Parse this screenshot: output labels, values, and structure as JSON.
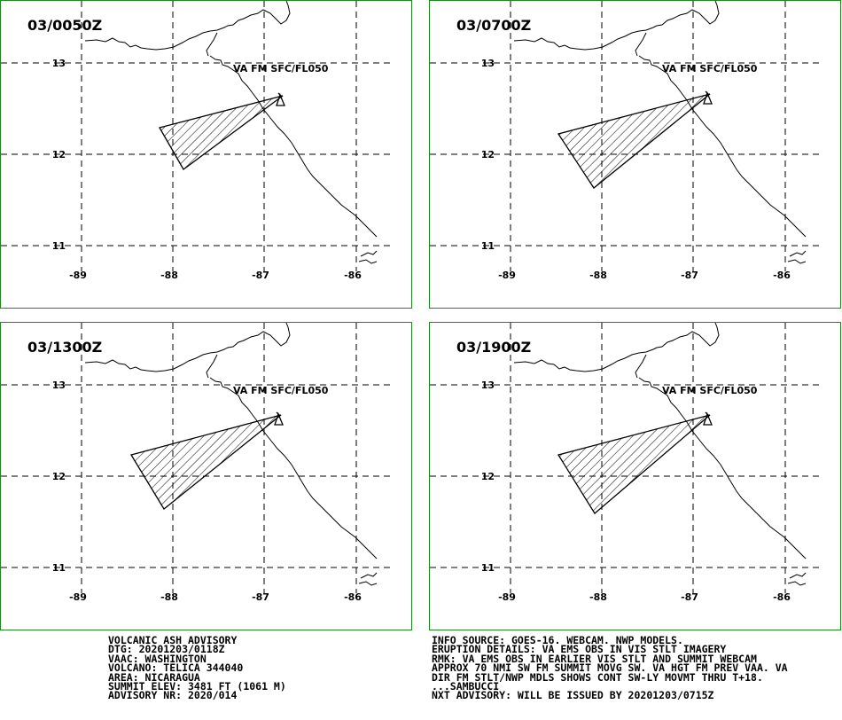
{
  "panels": [
    {
      "title": "03/0050Z",
      "label": "VA FM SFC/FL050"
    },
    {
      "title": "03/0700Z",
      "label": "VA FM SFC/FL050"
    },
    {
      "title": "03/1300Z",
      "label": "VA FM SFC/FL050"
    },
    {
      "title": "03/1900Z",
      "label": "VA FM SFC/FL050"
    }
  ],
  "axes": {
    "lat_labels": [
      "13",
      "12",
      "11"
    ],
    "lon_labels": [
      "-89",
      "-88",
      "-87",
      "-86"
    ]
  },
  "advisory_left": [
    "VOLCANIC ASH ADVISORY",
    "DTG: 20201203/0118Z",
    "VAAC: WASHINGTON",
    "VOLCANO: TELICA 344040",
    "AREA: NICARAGUA",
    "SUMMIT ELEV: 3481 FT (1061 M)",
    "ADVISORY NR: 2020/014"
  ],
  "advisory_right": [
    "INFO SOURCE: GOES-16. WEBCAM. NWP MODELS.",
    "ERUPTION DETAILS: VA EMS OBS IN VIS STLT IMAGERY",
    "RMK: VA EMS OBS IN EARLIER VIS STLT AND SUMMIT WEBCAM",
    "APPROX 70 NMI SW FM SUMMIT MOVG SW. VA HGT FM PREV VAA. VA",
    "DIR FM STLT/NWP MDLS SHOWS CONT SW-LY MOVMT THRU T+18.",
    "...SAMBUCCI",
    "NXT ADVISORY: WILL BE ISSUED BY 20201203/0715Z"
  ],
  "colors": {
    "border": "#1a8a1a",
    "ink": "#000000"
  }
}
